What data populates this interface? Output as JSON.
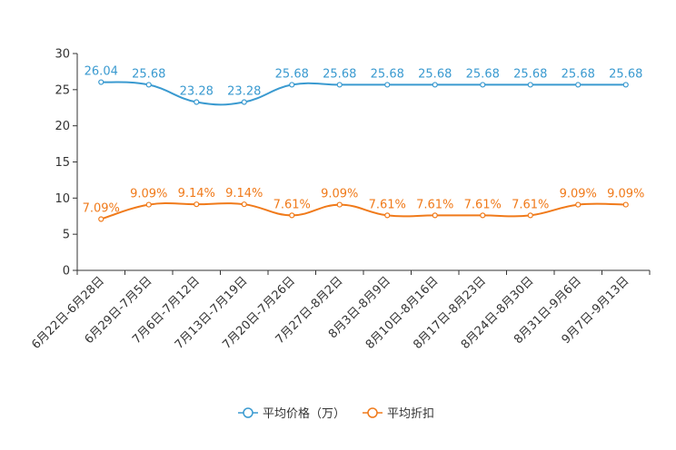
{
  "chart_data": {
    "type": "line",
    "categories": [
      "6月22日-6月28日",
      "6月29日-7月5日",
      "7月6日-7月12日",
      "7月13日-7月19日",
      "7月20日-7月26日",
      "7月27日-8月2日",
      "8月3日-8月9日",
      "8月10日-8月16日",
      "8月17日-8月23日",
      "8月24日-8月30日",
      "8月31日-9月6日",
      "9月7日-9月13日"
    ],
    "series": [
      {
        "name": "平均价格（万）",
        "color": "#3a9ad0",
        "values": [
          26.04,
          25.68,
          23.28,
          23.28,
          25.68,
          25.68,
          25.68,
          25.68,
          25.68,
          25.68,
          25.68,
          25.68
        ],
        "labels": [
          "26.04",
          "25.68",
          "23.28",
          "23.28",
          "25.68",
          "25.68",
          "25.68",
          "25.68",
          "25.68",
          "25.68",
          "25.68",
          "25.68"
        ]
      },
      {
        "name": "平均折扣",
        "color": "#f07a1a",
        "values": [
          7.09,
          9.09,
          9.14,
          9.14,
          7.61,
          9.09,
          7.61,
          7.61,
          7.61,
          7.61,
          9.09,
          9.09
        ],
        "labels": [
          "7.09%",
          "9.09%",
          "9.14%",
          "9.14%",
          "7.61%",
          "9.09%",
          "7.61%",
          "7.61%",
          "7.61%",
          "7.61%",
          "9.09%",
          "9.09%"
        ]
      }
    ],
    "yticks": [
      "0",
      "5",
      "10",
      "15",
      "20",
      "25",
      "30"
    ],
    "ylim": [
      0,
      30
    ],
    "title": "",
    "xlabel": "",
    "ylabel": "",
    "legend_position": "bottom-center"
  }
}
